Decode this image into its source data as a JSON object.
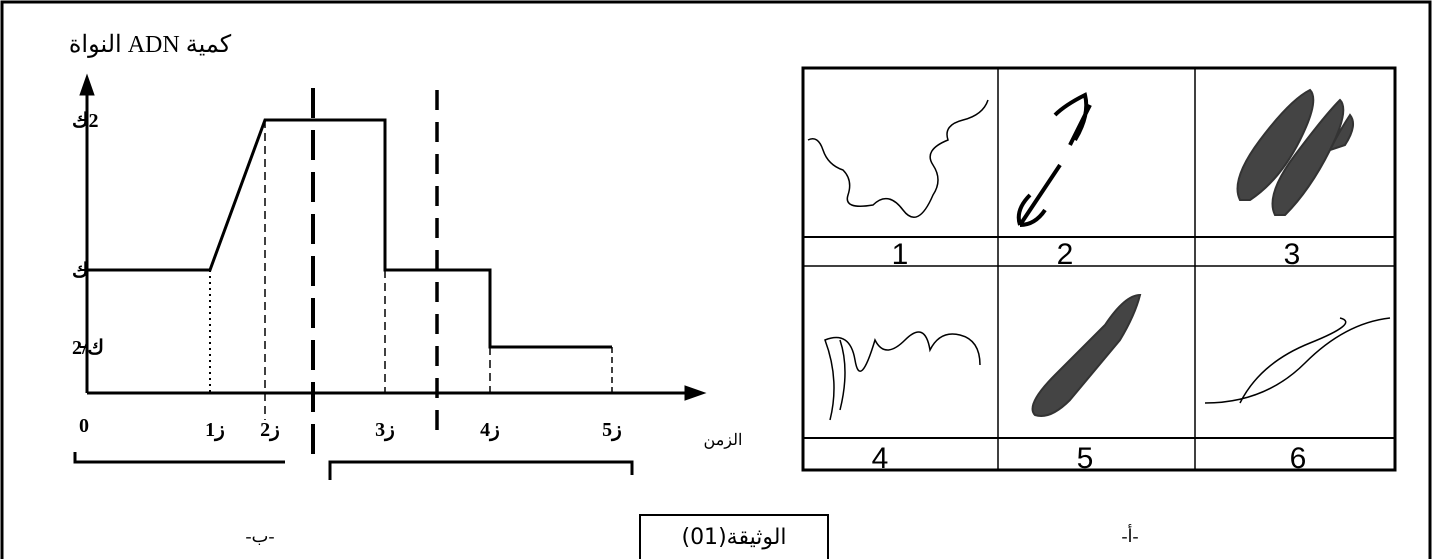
{
  "graph": {
    "y_axis_title": "كمية ADN النواة",
    "x_axis_title": "الزمن",
    "y_ticks": [
      "2ك",
      "ك",
      "ك/2"
    ],
    "x_ticks": [
      "0",
      "ز1",
      "ز2",
      "ز3",
      "ز4",
      "ز5"
    ]
  },
  "panel_b": {
    "label": "-ب-"
  },
  "panel_a": {
    "label": "-أ-",
    "images": [
      "1",
      "2",
      "3",
      "4",
      "5",
      "6"
    ]
  },
  "caption": "الوثيقة(01)"
}
